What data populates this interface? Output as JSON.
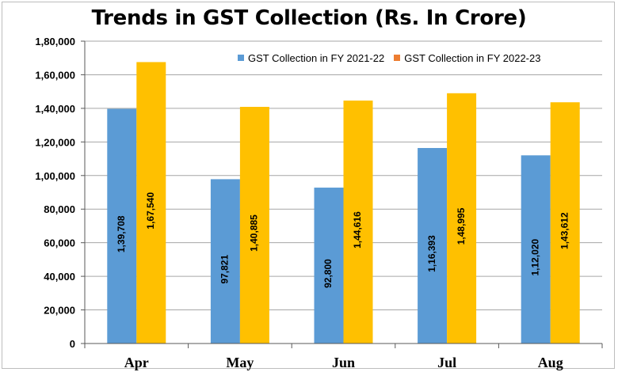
{
  "chart_data": {
    "type": "bar",
    "title": "Trends in GST Collection (Rs. In Crore)",
    "xlabel": "",
    "ylabel": "",
    "categories": [
      "Apr",
      "May",
      "Jun",
      "Jul",
      "Aug"
    ],
    "series": [
      {
        "name": "GST Collection in FY 2021-22",
        "color": "#5b9bd5",
        "values": [
          139708,
          97821,
          92800,
          116393,
          112020
        ],
        "labels": [
          "1,39,708",
          "97,821",
          "92,800",
          "1,16,393",
          "1,12,020"
        ]
      },
      {
        "name": "GST Collection in FY 2022-23",
        "color": "#ffc000",
        "values": [
          167540,
          140885,
          144616,
          148995,
          143612
        ],
        "labels": [
          "1,67,540",
          "1,40,885",
          "1,44,616",
          "1,48,995",
          "1,43,612"
        ]
      }
    ],
    "legend_marker_color_2": "#ed7d31",
    "ylim": [
      0,
      180000
    ],
    "yticks": [
      0,
      20000,
      40000,
      60000,
      80000,
      100000,
      120000,
      140000,
      160000,
      180000
    ],
    "ytick_labels": [
      "0",
      "20,000",
      "40,000",
      "60,000",
      "80,000",
      "1,00,000",
      "1,20,000",
      "1,40,000",
      "1,60,000",
      "1,80,000"
    ],
    "grid": true,
    "legend_position": "top-right"
  }
}
